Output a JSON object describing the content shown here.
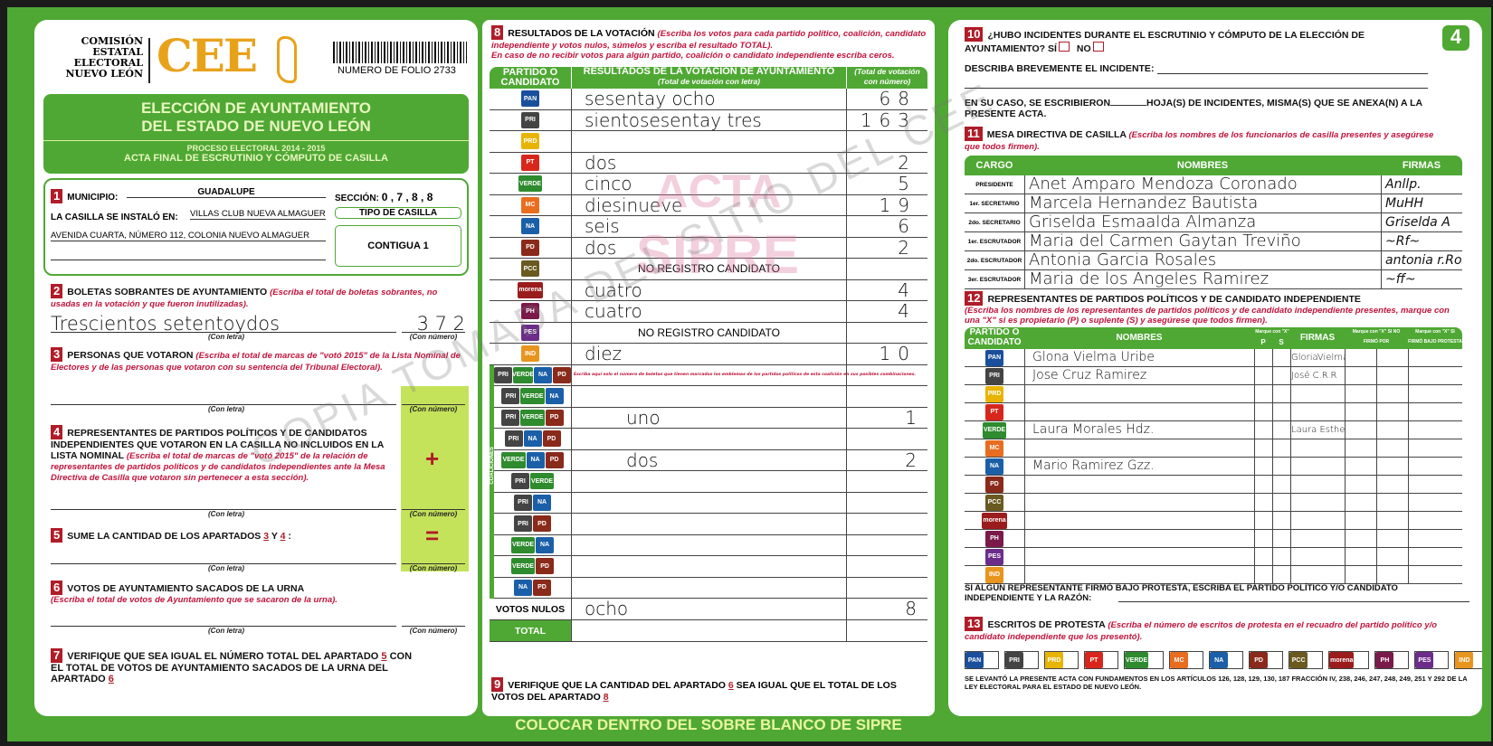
{
  "header": {
    "org": [
      "COMISIÓN",
      "ESTATAL",
      "ELECTORAL",
      "NUEVO LEÓN"
    ],
    "logo": "CEE",
    "folio": "NUMERO DE FOLIO 2733",
    "title1": "ELECCIÓN DE AYUNTAMIENTO",
    "title2": "DEL ESTADO DE NUEVO LEÓN",
    "process": "PROCESO ELECTORAL 2014 - 2015",
    "acta": "ACTA FINAL DE ESCRUTINIO Y CÓMPUTO DE CASILLA",
    "page_badge": "4"
  },
  "s1": {
    "num": "1",
    "municipio_label": "MUNICIPIO:",
    "municipio": "GUADALUPE",
    "seccion_label": "SECCIÓN:",
    "seccion": "0 , 7 , 8 , 8",
    "instalo_label": "LA CASILLA SE INSTALÓ EN:",
    "lugar": "VILLAS CLUB NUEVA ALMAGUER",
    "direccion": "AVENIDA CUARTA, NÚMERO 112, COLONIA NUEVO ALMAGUER",
    "tipo_label": "TIPO DE CASILLA",
    "tipo": "CONTIGUA 1"
  },
  "s2": {
    "num": "2",
    "title": "BOLETAS SOBRANTES DE AYUNTAMIENTO",
    "note": "(Escriba el total de boletas sobrantes, no usadas en la votación y que fueron inutilizadas).",
    "letra": "Trescientos setentoydos",
    "numero": "3 7 2"
  },
  "captions": {
    "letra": "(Con letra)",
    "numero": "(Con número)"
  },
  "s3": {
    "num": "3",
    "title": "PERSONAS QUE VOTARON",
    "note": "(Escriba el total de marcas de \"votó 2015\" de la Lista Nominal de Electores y de las personas que votaron con su sentencia del Tribunal Electoral)."
  },
  "s4": {
    "num": "4",
    "title": "REPRESENTANTES DE PARTIDOS POLÍTICOS Y DE CANDIDATOS INDEPENDIENTES QUE VOTARON EN LA CASILLA NO INCLUIDOS EN LA LISTA NOMINAL",
    "note": "(Escriba el total de marcas de \"votó 2015\" de la relación de representantes de partidos políticos y de candidatos independientes ante la Mesa Directiva de Casilla que votaron sin pertenecer a esta sección).",
    "plus": "+",
    "equals": "="
  },
  "s5": {
    "num": "5",
    "title": "SUME LA CANTIDAD DE LOS APARTADOS",
    "a": "3",
    "y": "Y",
    "b": "4"
  },
  "s6": {
    "num": "6",
    "title": "VOTOS DE AYUNTAMIENTO SACADOS DE LA URNA",
    "note": "(Escriba el total de votos de Ayuntamiento que se sacaron de la urna)."
  },
  "s7": {
    "num": "7",
    "text1": "VERIFIQUE QUE SEA IGUAL EL NÚMERO TOTAL DEL APARTADO",
    "a": "5",
    "text2": "CON EL TOTAL DE VOTOS DE AYUNTAMIENTO SACADOS DE LA URNA DEL APARTADO",
    "b": "6"
  },
  "s8": {
    "num": "8",
    "title": "RESULTADOS DE LA VOTACIÓN",
    "note": "(Escriba los votos para cada partido político, coalición, candidato independiente y votos nulos, súmelos y escriba el resultado TOTAL).",
    "note2": "En caso de no recibir votos para algún partido, coalición o candidato independiente escriba ceros.",
    "col1": "PARTIDO O CANDIDATO",
    "col2": "RESULTADOS DE LA VOTACIÓN DE AYUNTAMIENTO",
    "col2sub": "(Total de votación con letra)",
    "col3": "(Total de votación con número)",
    "rows": [
      {
        "icon": "PAN",
        "color": "#1a4f9c",
        "letra": "sesentay ocho",
        "numero": "68"
      },
      {
        "icon": "PRI",
        "color": "#444",
        "letra": "sientosesentay tres",
        "numero": "163"
      },
      {
        "icon": "PRD",
        "color": "#e8b400",
        "letra": "",
        "numero": ""
      },
      {
        "icon": "PT",
        "color": "#d8261c",
        "letra": "dos",
        "numero": "2"
      },
      {
        "icon": "VERDE",
        "color": "#2e8b2e",
        "letra": "cinco",
        "numero": "5"
      },
      {
        "icon": "MC",
        "color": "#e86d1f",
        "letra": "diesinueve",
        "numero": "19"
      },
      {
        "icon": "NA",
        "color": "#1b5fa8",
        "letra": "seis",
        "numero": "6"
      },
      {
        "icon": "PD",
        "color": "#8a2a1a",
        "letra": "dos",
        "numero": "2"
      },
      {
        "icon": "PCC",
        "color": "#6a5a20",
        "letra": "NO REGISTRO CANDIDATO",
        "numero": ""
      },
      {
        "icon": "morena",
        "color": "#9b1c1c",
        "letra": "cuatro",
        "numero": "4"
      },
      {
        "icon": "PH",
        "color": "#7a1a4a",
        "letra": "cuatro",
        "numero": "4"
      },
      {
        "icon": "PES",
        "color": "#6c2d8a",
        "letra": "NO REGISTRO CANDIDATO",
        "numero": ""
      },
      {
        "icon": "IND",
        "color": "#e8951f",
        "letra": "diez",
        "numero": "10"
      }
    ],
    "coalition_label": "COALICIONES",
    "coalition_note": "Escriba aquí solo el número de boletas que tienen marcados los emblemas de los partidos políticos de esta coalición en sus posibles combinaciones.",
    "coalition_rows": [
      {
        "icons": "PRI·VERDE·NA·PD",
        "letra": "",
        "numero": ""
      },
      {
        "icons": "PRI·VERDE·NA",
        "letra": "",
        "numero": ""
      },
      {
        "icons": "PRI·VERDE·PD",
        "letra": "uno",
        "numero": "1"
      },
      {
        "icons": "PRI·NA·PD",
        "letra": "",
        "numero": ""
      },
      {
        "icons": "VERDE·NA·PD",
        "letra": "dos",
        "numero": "2"
      },
      {
        "icons": "PRI·VERDE",
        "letra": "",
        "numero": ""
      },
      {
        "icons": "PRI·NA",
        "letra": "",
        "numero": ""
      },
      {
        "icons": "PRI·PD",
        "letra": "",
        "numero": ""
      },
      {
        "icons": "VERDE·NA",
        "letra": "",
        "numero": ""
      },
      {
        "icons": "VERDE·PD",
        "letra": "",
        "numero": ""
      },
      {
        "icons": "NA·PD",
        "letra": "",
        "numero": ""
      }
    ],
    "nulos_label": "VOTOS NULOS",
    "nulos_letra": "ocho",
    "nulos_numero": "8",
    "total_label": "TOTAL"
  },
  "s9": {
    "num": "9",
    "text1": "VERIFIQUE QUE LA CANTIDAD DEL APARTADO",
    "a": "6",
    "text2": "SEA IGUAL QUE EL TOTAL DE LOS VOTOS DEL APARTADO",
    "b": "8"
  },
  "banner": "COLOCAR DENTRO DEL SOBRE BLANCO DE SIPRE",
  "s10": {
    "num": "10",
    "q": "¿HUBO INCIDENTES DURANTE EL ESCRUTINIO Y CÓMPUTO DE LA ELECCIÓN DE AYUNTAMIENTO?",
    "si": "SÍ",
    "no": "NO",
    "describe": "DESCRIBA BREVEMENTE EL INCIDENTE:",
    "hojas1": "EN SU CASO, SE ESCRIBIERON",
    "hojas2": "HOJA(S) DE INCIDENTES, MISMA(S) QUE SE ANEXA(N) A LA PRESENTE ACTA."
  },
  "s11": {
    "num": "11",
    "title": "MESA DIRECTIVA DE CASILLA",
    "note": "(Escriba los nombres de los funcionarios de casilla presentes y asegúrese que todos firmen).",
    "h_cargo": "CARGO",
    "h_nombres": "NOMBRES",
    "h_firmas": "FIRMAS",
    "rows": [
      {
        "cargo": "PRESIDENTE",
        "nombre": "Anet Amparo Mendoza Coronado",
        "firma": "Anllp."
      },
      {
        "cargo": "1er. SECRETARIO",
        "nombre": "Marcela Hernandez Bautista",
        "firma": "MuHH"
      },
      {
        "cargo": "2do. SECRETARIO",
        "nombre": "Griselda Esmaalda Almanza",
        "firma": "Griselda A"
      },
      {
        "cargo": "1er. ESCRUTADOR",
        "nombre": "Maria del Carmen Gaytan Treviño",
        "firma": "~Rf~"
      },
      {
        "cargo": "2do. ESCRUTADOR",
        "nombre": "Antonia Garcia Rosales",
        "firma": "antonia r.Rosales"
      },
      {
        "cargo": "3er. ESCRUTADOR",
        "nombre": "Maria de los Angeles Ramirez",
        "firma": "~ff~"
      }
    ]
  },
  "s12": {
    "num": "12",
    "title": "REPRESENTANTES DE PARTIDOS POLÍTICOS Y DE CANDIDATO INDEPENDIENTE",
    "note": "(Escriba los nombres de los representantes de partidos políticos y de candidato independiente presentes, marque con una \"X\" si es propietario (P) o suplente (S) y asegúrese que todos firmen).",
    "h_partido": "PARTIDO O CANDIDATO",
    "h_nombres": "NOMBRES",
    "h_marque": "Marque con \"X\"",
    "h_p": "P",
    "h_s": "S",
    "h_firmas": "FIRMAS",
    "h_nofirmo": "Marque con \"X\" SI NO FIRMÓ POR",
    "h_negativa": "NEGATIVA",
    "h_ausencia": "AUSENCIA",
    "h_protesta": "Marque con \"X\" SI FIRMÓ BAJO PROTESTA",
    "rows": [
      {
        "icon": "PAN",
        "color": "#1a4f9c",
        "nombre": "Glona Vielma Uribe",
        "firma": "GloriaVielma"
      },
      {
        "icon": "PRI",
        "color": "#444",
        "nombre": "Jose Cruz Ramirez",
        "firma": "José C.R.R"
      },
      {
        "icon": "PRD",
        "color": "#e8b400",
        "nombre": "",
        "firma": ""
      },
      {
        "icon": "PT",
        "color": "#d8261c",
        "nombre": "",
        "firma": ""
      },
      {
        "icon": "VERDE",
        "color": "#2e8b2e",
        "nombre": "Laura Morales Hdz.",
        "firma": "Laura Esther morales"
      },
      {
        "icon": "MC",
        "color": "#e86d1f",
        "nombre": "",
        "firma": ""
      },
      {
        "icon": "NA",
        "color": "#1b5fa8",
        "nombre": "Mario Ramirez Gzz.",
        "firma": ""
      },
      {
        "icon": "PD",
        "color": "#8a2a1a",
        "nombre": "",
        "firma": ""
      },
      {
        "icon": "PCC",
        "color": "#6a5a20",
        "nombre": "",
        "firma": ""
      },
      {
        "icon": "morena",
        "color": "#9b1c1c",
        "nombre": "",
        "firma": ""
      },
      {
        "icon": "PH",
        "color": "#7a1a4a",
        "nombre": "",
        "firma": ""
      },
      {
        "icon": "PES",
        "color": "#6c2d8a",
        "nombre": "",
        "firma": ""
      },
      {
        "icon": "IND",
        "color": "#e8951f",
        "nombre": "",
        "firma": ""
      }
    ],
    "protesta_text": "SI ALGÚN REPRESENTANTE FIRMÓ BAJO PROTESTA, ESCRIBA EL PARTIDO POLÍTICO Y/O CANDIDATO INDEPENDIENTE Y LA RAZÓN:"
  },
  "s13": {
    "num": "13",
    "title": "ESCRITOS DE PROTESTA",
    "note": "(Escriba el número de escritos de protesta en el recuadro del partido político y/o candidato independiente que los presentó).",
    "boxes": [
      {
        "icon": "PAN",
        "color": "#1a4f9c"
      },
      {
        "icon": "PRI",
        "color": "#444"
      },
      {
        "icon": "PRD",
        "color": "#e8b400"
      },
      {
        "icon": "PT",
        "color": "#d8261c"
      },
      {
        "icon": "VERDE",
        "color": "#2e8b2e"
      },
      {
        "icon": "MC",
        "color": "#e86d1f"
      },
      {
        "icon": "NA",
        "color": "#1b5fa8"
      },
      {
        "icon": "PD",
        "color": "#8a2a1a"
      },
      {
        "icon": "PCC",
        "color": "#6a5a20"
      },
      {
        "icon": "morena",
        "color": "#9b1c1c"
      },
      {
        "icon": "PH",
        "color": "#7a1a4a"
      },
      {
        "icon": "PES",
        "color": "#6c2d8a"
      },
      {
        "icon": "IND",
        "color": "#e8951f"
      }
    ],
    "footer": "SE LEVANTÓ LA PRESENTE ACTA CON FUNDAMENTOS EN LOS ARTÍCULOS 126, 128, 129, 130, 187 FRACCIÓN IV, 238, 246, 247, 248, 249, 251 Y 292 DE LA LEY ELECTORAL PARA EL ESTADO DE NUEVO LEÓN."
  },
  "watermarks": {
    "sipre1": "ACTA",
    "sipre2": "SIPRE",
    "copia": "COPIA TOMADA DEL SITIO DEL CEE"
  },
  "colors": {
    "green": "#4fa834",
    "red": "#b01c28",
    "gold": "#e8a21a",
    "lime": "#c5e35a"
  }
}
